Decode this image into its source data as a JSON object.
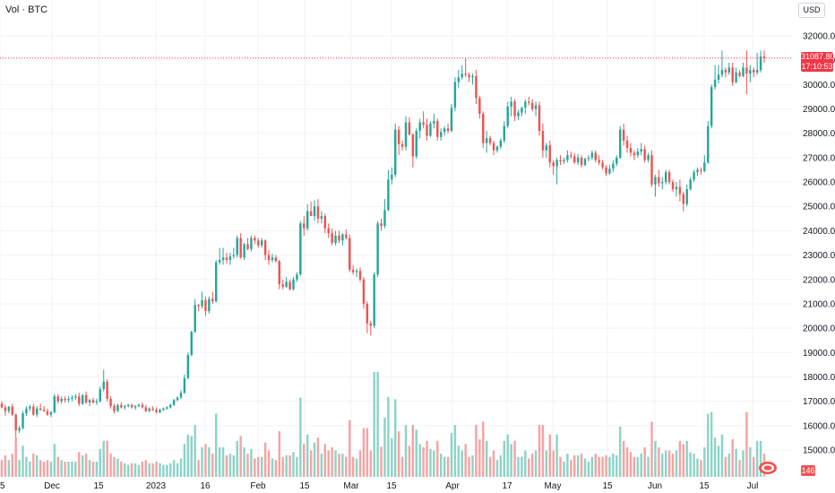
{
  "header": {
    "title": "Vol · BTC",
    "currency": "USD"
  },
  "price_tag": {
    "price": "31087.80",
    "countdown": "17:10:53"
  },
  "volume_tag": {
    "value": "146"
  },
  "colors": {
    "up": "#26a69a",
    "down": "#ef5350",
    "vol_up": "#8dd3c7",
    "vol_down": "#f5a3a3",
    "last_price_line": "#f23645",
    "grid": "#f0f3fa",
    "axis_text": "#131722"
  },
  "chart_data": {
    "type": "candlestick",
    "y_axis": {
      "ticks": [
        15000,
        16000,
        17000,
        18000,
        19000,
        20000,
        21000,
        22000,
        23000,
        24000,
        25000,
        26000,
        27000,
        28000,
        29000,
        30000,
        31000,
        32000
      ]
    },
    "x_axis": {
      "ticks": [
        "5",
        "Dec",
        "15",
        "2023",
        "16",
        "Feb",
        "15",
        "Mar",
        "15",
        "Apr",
        "17",
        "May",
        "15",
        "Jun",
        "15",
        "Jul"
      ]
    },
    "last_price": 31087.8,
    "candles": [
      [
        16900,
        17000,
        16700,
        16750
      ],
      [
        16750,
        16850,
        16400,
        16600
      ],
      [
        16600,
        16800,
        16500,
        16780
      ],
      [
        16780,
        16900,
        16400,
        16450
      ],
      [
        16450,
        16500,
        15500,
        15800
      ],
      [
        15800,
        16000,
        15700,
        15900
      ],
      [
        15900,
        16600,
        15850,
        16500
      ],
      [
        16500,
        16800,
        16400,
        16700
      ],
      [
        16700,
        16850,
        16600,
        16780
      ],
      [
        16780,
        16900,
        16400,
        16450
      ],
      [
        16450,
        16800,
        16350,
        16700
      ],
      [
        16700,
        16900,
        16600,
        16650
      ],
      [
        16650,
        16800,
        16550,
        16600
      ],
      [
        16600,
        16700,
        16400,
        16450
      ],
      [
        16450,
        16600,
        16350,
        16550
      ],
      [
        16550,
        17300,
        16500,
        17200
      ],
      [
        17200,
        17300,
        16900,
        17000
      ],
      [
        17000,
        17200,
        16900,
        17100
      ],
      [
        17100,
        17200,
        16950,
        17050
      ],
      [
        17050,
        17200,
        16950,
        17100
      ],
      [
        17100,
        17250,
        17000,
        17150
      ],
      [
        17150,
        17300,
        17050,
        17200
      ],
      [
        17200,
        17350,
        16800,
        16900
      ],
      [
        16900,
        17300,
        16850,
        17250
      ],
      [
        17250,
        17400,
        16900,
        16950
      ],
      [
        16950,
        17100,
        16800,
        17050
      ],
      [
        17050,
        17150,
        16900,
        16950
      ],
      [
        16950,
        17100,
        16850,
        17000
      ],
      [
        17000,
        17600,
        16950,
        17500
      ],
      [
        17500,
        18300,
        17400,
        17800
      ],
      [
        17800,
        17900,
        17000,
        17100
      ],
      [
        17100,
        17200,
        16700,
        16800
      ],
      [
        16800,
        16900,
        16500,
        16600
      ],
      [
        16600,
        16900,
        16550,
        16850
      ],
      [
        16850,
        16950,
        16700,
        16750
      ],
      [
        16750,
        16850,
        16650,
        16800
      ],
      [
        16800,
        16900,
        16750,
        16850
      ],
      [
        16850,
        16900,
        16700,
        16750
      ],
      [
        16750,
        16850,
        16650,
        16800
      ],
      [
        16800,
        16900,
        16750,
        16850
      ],
      [
        16850,
        16950,
        16700,
        16750
      ],
      [
        16750,
        16850,
        16550,
        16600
      ],
      [
        16600,
        16750,
        16550,
        16700
      ],
      [
        16700,
        16800,
        16600,
        16650
      ],
      [
        16650,
        16750,
        16500,
        16550
      ],
      [
        16550,
        16700,
        16500,
        16650
      ],
      [
        16650,
        16750,
        16600,
        16700
      ],
      [
        16700,
        16800,
        16650,
        16750
      ],
      [
        16750,
        16900,
        16700,
        16850
      ],
      [
        16850,
        17100,
        16800,
        17050
      ],
      [
        17050,
        17200,
        17000,
        17150
      ],
      [
        17150,
        17450,
        17100,
        17350
      ],
      [
        17350,
        18100,
        17300,
        17950
      ],
      [
        17950,
        19000,
        17900,
        18900
      ],
      [
        18900,
        19900,
        18850,
        19850
      ],
      [
        19850,
        21200,
        19800,
        20950
      ],
      [
        20950,
        21000,
        20700,
        20900
      ],
      [
        20900,
        21500,
        20800,
        21150
      ],
      [
        21150,
        21300,
        20500,
        20700
      ],
      [
        20700,
        21300,
        20600,
        21200
      ],
      [
        21200,
        21500,
        21000,
        21100
      ],
      [
        21100,
        22800,
        21050,
        22700
      ],
      [
        22700,
        23300,
        22600,
        22800
      ],
      [
        22800,
        23300,
        22600,
        22900
      ],
      [
        22900,
        23100,
        22650,
        22800
      ],
      [
        22800,
        23100,
        22600,
        22950
      ],
      [
        22950,
        23300,
        22850,
        23000
      ],
      [
        23000,
        23800,
        22900,
        23700
      ],
      [
        23700,
        23900,
        22850,
        22900
      ],
      [
        22900,
        23500,
        22800,
        23450
      ],
      [
        23450,
        23700,
        23200,
        23250
      ],
      [
        23250,
        23800,
        23150,
        23700
      ],
      [
        23700,
        23800,
        23450,
        23600
      ],
      [
        23600,
        23700,
        23300,
        23400
      ],
      [
        23400,
        23700,
        23300,
        23600
      ],
      [
        23600,
        23650,
        22800,
        23000
      ],
      [
        23000,
        23200,
        22600,
        22800
      ],
      [
        22800,
        23050,
        22700,
        22900
      ],
      [
        22900,
        23000,
        22700,
        22750
      ],
      [
        22750,
        22800,
        21600,
        21800
      ],
      [
        21800,
        22000,
        21600,
        21700
      ],
      [
        21700,
        22100,
        21650,
        21900
      ],
      [
        21900,
        22000,
        21550,
        21600
      ],
      [
        21600,
        22100,
        21550,
        22000
      ],
      [
        22000,
        22300,
        21900,
        22200
      ],
      [
        22200,
        24400,
        22150,
        24300
      ],
      [
        24300,
        24600,
        23800,
        24100
      ],
      [
        24100,
        25100,
        24000,
        24800
      ],
      [
        24800,
        25200,
        24600,
        24600
      ],
      [
        24600,
        25250,
        24400,
        25000
      ],
      [
        25000,
        25300,
        24300,
        24500
      ],
      [
        24500,
        24800,
        24300,
        24600
      ],
      [
        24600,
        24700,
        23900,
        24100
      ],
      [
        24100,
        24300,
        23700,
        23900
      ],
      [
        23900,
        24100,
        23400,
        23500
      ],
      [
        23500,
        24000,
        23400,
        23800
      ],
      [
        23800,
        24000,
        23500,
        23600
      ],
      [
        23600,
        23900,
        23400,
        23850
      ],
      [
        23850,
        24050,
        23650,
        23700
      ],
      [
        23700,
        23850,
        22300,
        22400
      ],
      [
        22400,
        22600,
        22200,
        22300
      ],
      [
        22300,
        22450,
        22100,
        22350
      ],
      [
        22350,
        22500,
        21900,
        22000
      ],
      [
        22000,
        22100,
        20800,
        21000
      ],
      [
        21000,
        21100,
        19800,
        20200
      ],
      [
        20200,
        20300,
        19700,
        20100
      ],
      [
        20100,
        22300,
        20000,
        22200
      ],
      [
        22200,
        24400,
        22100,
        24300
      ],
      [
        24300,
        24500,
        24000,
        24200
      ],
      [
        24200,
        25300,
        24100,
        24850
      ],
      [
        24850,
        26500,
        24800,
        26100
      ],
      [
        26100,
        26600,
        25900,
        26300
      ],
      [
        26300,
        28400,
        26200,
        28150
      ],
      [
        28150,
        28300,
        27100,
        27550
      ],
      [
        27550,
        27700,
        27300,
        27450
      ],
      [
        27450,
        28700,
        27300,
        28450
      ],
      [
        28450,
        28650,
        27900,
        27950
      ],
      [
        27950,
        28000,
        26600,
        27050
      ],
      [
        27050,
        28200,
        26950,
        28100
      ],
      [
        28100,
        28600,
        27800,
        28450
      ],
      [
        28450,
        28900,
        28200,
        28350
      ],
      [
        28350,
        28600,
        27700,
        27900
      ],
      [
        27900,
        28500,
        27850,
        28400
      ],
      [
        28400,
        28800,
        28200,
        28500
      ],
      [
        28500,
        28600,
        27700,
        27850
      ],
      [
        27850,
        28200,
        27700,
        28050
      ],
      [
        28050,
        28300,
        27900,
        28200
      ],
      [
        28200,
        28400,
        28000,
        28100
      ],
      [
        28100,
        29200,
        28050,
        29050
      ],
      [
        29050,
        30300,
        28900,
        30100
      ],
      [
        30100,
        30600,
        29850,
        30300
      ],
      [
        30300,
        30800,
        30200,
        30450
      ],
      [
        30450,
        31100,
        30300,
        30400
      ],
      [
        30400,
        30500,
        30100,
        30300
      ],
      [
        30300,
        30450,
        30000,
        30350
      ],
      [
        30350,
        30600,
        29200,
        29450
      ],
      [
        29450,
        29550,
        28600,
        28800
      ],
      [
        28800,
        28900,
        27400,
        27600
      ],
      [
        27600,
        28100,
        27200,
        27800
      ],
      [
        27800,
        27900,
        27500,
        27600
      ],
      [
        27600,
        27700,
        27100,
        27300
      ],
      [
        27300,
        27500,
        27200,
        27450
      ],
      [
        27450,
        27800,
        27350,
        27700
      ],
      [
        27700,
        28500,
        27600,
        28300
      ],
      [
        28300,
        29300,
        28200,
        29100
      ],
      [
        29100,
        29500,
        28700,
        29300
      ],
      [
        29300,
        29400,
        28500,
        28700
      ],
      [
        28700,
        28950,
        28550,
        28850
      ],
      [
        28850,
        29100,
        28700,
        29050
      ],
      [
        29050,
        29400,
        28800,
        29300
      ],
      [
        29300,
        29500,
        29150,
        29250
      ],
      [
        29250,
        29400,
        28900,
        29000
      ],
      [
        29000,
        29300,
        28700,
        29150
      ],
      [
        29150,
        29300,
        27900,
        28100
      ],
      [
        28100,
        28400,
        27000,
        27300
      ],
      [
        27300,
        27600,
        27000,
        27500
      ],
      [
        27500,
        27700,
        26600,
        26800
      ],
      [
        26800,
        26900,
        26300,
        26650
      ],
      [
        26650,
        27000,
        25900,
        26900
      ],
      [
        26900,
        27100,
        26700,
        26850
      ],
      [
        26850,
        27000,
        26750,
        26900
      ],
      [
        26900,
        27300,
        26800,
        27100
      ],
      [
        27100,
        27250,
        26950,
        27050
      ],
      [
        27050,
        27200,
        26750,
        26800
      ],
      [
        26800,
        27150,
        26700,
        27000
      ],
      [
        27000,
        27100,
        26600,
        26700
      ],
      [
        26700,
        27000,
        26650,
        26950
      ],
      [
        26950,
        27100,
        26850,
        27000
      ],
      [
        27000,
        27300,
        26900,
        27200
      ],
      [
        27200,
        27300,
        26800,
        26900
      ],
      [
        26900,
        27100,
        26700,
        26800
      ],
      [
        26800,
        26900,
        26500,
        26600
      ],
      [
        26600,
        26700,
        26250,
        26350
      ],
      [
        26350,
        26700,
        26300,
        26550
      ],
      [
        26550,
        26900,
        26400,
        26750
      ],
      [
        26750,
        27100,
        26650,
        27000
      ],
      [
        27000,
        28300,
        26950,
        28150
      ],
      [
        28150,
        28400,
        27500,
        27700
      ],
      [
        27700,
        27900,
        27200,
        27400
      ],
      [
        27400,
        27600,
        27050,
        27200
      ],
      [
        27200,
        27300,
        26900,
        27100
      ],
      [
        27100,
        27400,
        27000,
        27250
      ],
      [
        27250,
        27600,
        27100,
        27350
      ],
      [
        27350,
        27500,
        26800,
        26900
      ],
      [
        26900,
        27200,
        26800,
        27100
      ],
      [
        27100,
        27300,
        25800,
        25900
      ],
      [
        25900,
        26300,
        25400,
        26200
      ],
      [
        26200,
        26500,
        25800,
        25950
      ],
      [
        25950,
        26200,
        25700,
        26000
      ],
      [
        26000,
        26500,
        25900,
        26400
      ],
      [
        26400,
        26500,
        25900,
        26000
      ],
      [
        26000,
        26100,
        25600,
        25700
      ],
      [
        25700,
        26000,
        25400,
        25800
      ],
      [
        25800,
        26100,
        25200,
        25500
      ],
      [
        25500,
        25600,
        24800,
        25100
      ],
      [
        25100,
        25900,
        25000,
        25700
      ],
      [
        25700,
        26200,
        25650,
        26100
      ],
      [
        26100,
        26500,
        26000,
        26400
      ],
      [
        26400,
        26600,
        26250,
        26500
      ],
      [
        26500,
        26600,
        26300,
        26450
      ],
      [
        26450,
        27100,
        26400,
        26800
      ],
      [
        26800,
        28500,
        26750,
        28300
      ],
      [
        28300,
        30000,
        28200,
        29900
      ],
      [
        29900,
        30800,
        29800,
        30200
      ],
      [
        30200,
        30800,
        30050,
        30400
      ],
      [
        30400,
        31400,
        30300,
        30600
      ],
      [
        30600,
        30700,
        30300,
        30500
      ],
      [
        30500,
        30900,
        30400,
        30700
      ],
      [
        30700,
        30900,
        29950,
        30100
      ],
      [
        30100,
        30700,
        30050,
        30500
      ],
      [
        30500,
        30600,
        30300,
        30350
      ],
      [
        30350,
        30900,
        30300,
        30700
      ],
      [
        30700,
        31400,
        29600,
        30450
      ],
      [
        30450,
        30800,
        30100,
        30600
      ],
      [
        30600,
        30700,
        30300,
        30500
      ],
      [
        30500,
        31300,
        30400,
        30600
      ],
      [
        30600,
        31400,
        30500,
        31150
      ],
      [
        31150,
        31400,
        30900,
        31087.8
      ]
    ],
    "volumes": [
      "down",
      3.2,
      "down",
      2.6,
      "up",
      2.8,
      "down",
      3.5,
      "down",
      4.4,
      "up",
      2.8,
      "up",
      3.1,
      "up",
      2.5,
      "up",
      2.3,
      "down",
      2.8
    ]
  }
}
